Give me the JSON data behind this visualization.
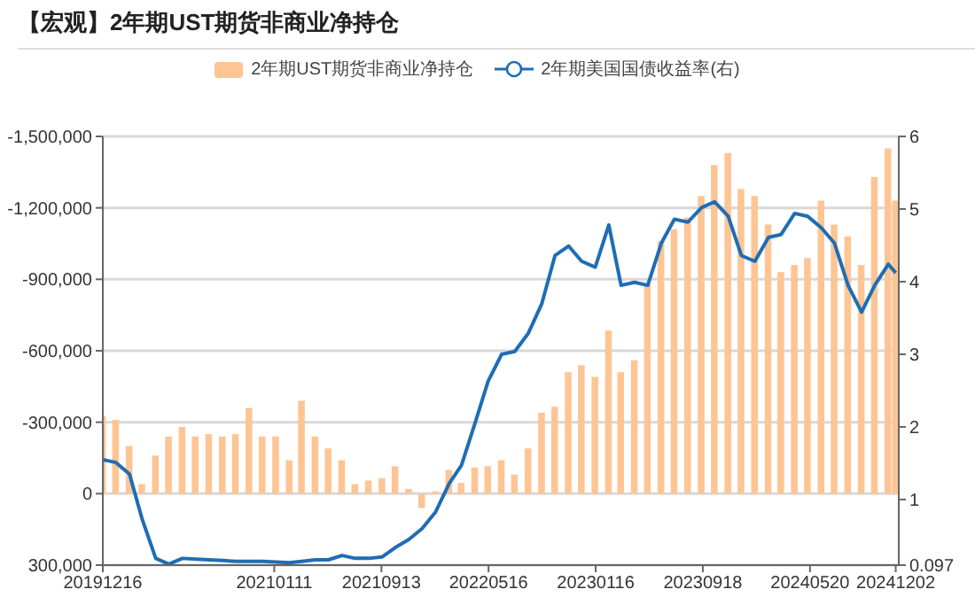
{
  "chart_data": {
    "type": "bar",
    "title": "【宏观】2年期UST期货非商业净持仓",
    "x": [
      "2019-12-16",
      "2020-01-15",
      "2020-02-15",
      "2020-03-15",
      "2020-04-15",
      "2020-05-15",
      "2020-06-15",
      "2020-07-15",
      "2020-08-15",
      "2020-09-15",
      "2020-10-15",
      "2020-11-15",
      "2020-12-15",
      "2021-01-15",
      "2021-02-15",
      "2021-03-15",
      "2021-04-15",
      "2021-05-15",
      "2021-06-15",
      "2021-07-15",
      "2021-08-15",
      "2021-09-15",
      "2021-10-15",
      "2021-11-15",
      "2021-12-15",
      "2022-01-15",
      "2022-02-15",
      "2022-03-15",
      "2022-04-15",
      "2022-05-15",
      "2022-06-15",
      "2022-07-15",
      "2022-08-15",
      "2022-09-15",
      "2022-10-15",
      "2022-11-15",
      "2022-12-15",
      "2023-01-15",
      "2023-02-15",
      "2023-03-15",
      "2023-04-15",
      "2023-05-15",
      "2023-06-15",
      "2023-07-15",
      "2023-08-15",
      "2023-09-15",
      "2023-10-15",
      "2023-11-15",
      "2023-12-15",
      "2024-01-15",
      "2024-02-15",
      "2024-03-15",
      "2024-04-15",
      "2024-05-15",
      "2024-06-15",
      "2024-07-15",
      "2024-08-15",
      "2024-09-15",
      "2024-10-15",
      "2024-11-15",
      "2024-12-02"
    ],
    "series": [
      {
        "name": "2年期UST期货非商业净持仓",
        "color": "#fdc594",
        "values": [
          -327000,
          -310000,
          -200000,
          -40000,
          -160000,
          -240000,
          -280000,
          -240000,
          -250000,
          -240000,
          -250000,
          -360000,
          -240000,
          -240000,
          -140000,
          -390000,
          -240000,
          -190000,
          -140000,
          -40000,
          -55000,
          -65000,
          -115000,
          -20000,
          60000,
          -10000,
          -100000,
          -45000,
          -110000,
          -115000,
          -140000,
          -80000,
          -190000,
          -340000,
          -365000,
          -510000,
          -540000,
          -490000,
          -685000,
          -510000,
          -560000,
          -880000,
          -1060000,
          -1110000,
          -1160000,
          -1250000,
          -1380000,
          -1430000,
          -1280000,
          -1250000,
          -1130000,
          -930000,
          -960000,
          -990000,
          -1230000,
          -1130000,
          -1080000,
          -960000,
          -1330000,
          -1450000,
          -1230000
        ]
      },
      {
        "name": "2年期美国国债收益率(右)",
        "type": "line",
        "axis": "y2",
        "color": "#1f6db4",
        "values": [
          1.55,
          1.51,
          1.35,
          0.73,
          0.19,
          0.11,
          0.19,
          0.18,
          0.17,
          0.16,
          0.15,
          0.15,
          0.15,
          0.14,
          0.13,
          0.15,
          0.17,
          0.17,
          0.23,
          0.19,
          0.19,
          0.21,
          0.34,
          0.45,
          0.6,
          0.83,
          1.22,
          1.47,
          2.05,
          2.63,
          3.0,
          3.04,
          3.29,
          3.7,
          4.36,
          4.49,
          4.28,
          4.2,
          4.78,
          3.95,
          3.99,
          3.95,
          4.53,
          4.86,
          4.82,
          5.02,
          5.1,
          4.9,
          4.36,
          4.28,
          4.61,
          4.65,
          4.94,
          4.9,
          4.74,
          4.53,
          3.95,
          3.58,
          3.95,
          4.24,
          4.12
        ]
      }
    ],
    "xlim": [
      "2019-12-16",
      "2024-12-09"
    ],
    "xticks": [
      {
        "value": "2019-12-16",
        "label": "20191216"
      },
      {
        "value": "2021-01-11",
        "label": "20210111"
      },
      {
        "value": "2021-09-13",
        "label": "20210913"
      },
      {
        "value": "2022-05-16",
        "label": "20220516"
      },
      {
        "value": "2023-01-16",
        "label": "20230116"
      },
      {
        "value": "2023-09-18",
        "label": "20230918"
      },
      {
        "value": "2024-05-20",
        "label": "20240520"
      },
      {
        "value": "2024-12-02",
        "label": "20241202"
      }
    ],
    "ylim": [
      300000,
      -1500000
    ],
    "yticks": [
      {
        "value": 300000,
        "label": "300,000"
      },
      0,
      {
        "value": -300000,
        "label": "-300,000"
      },
      {
        "value": -600000,
        "label": "-600,000"
      },
      {
        "value": -900000,
        "label": "-900,000"
      },
      {
        "value": -1200000,
        "label": "-1,200,000"
      },
      {
        "value": -1500000,
        "label": "-1,500,000"
      }
    ],
    "y2lim": [
      0.097,
      6
    ],
    "y2ticks": [
      0.097,
      1,
      2,
      3,
      4,
      5,
      6
    ],
    "grid": "y",
    "legend": "top"
  }
}
